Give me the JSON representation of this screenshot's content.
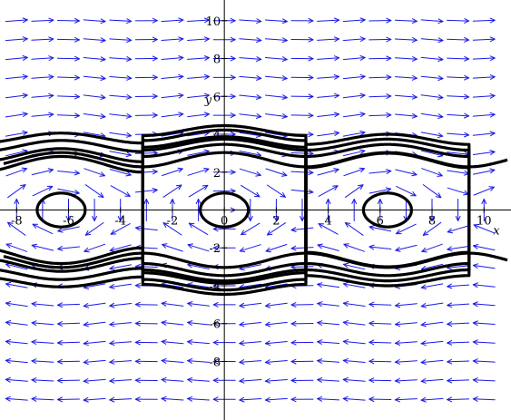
{
  "chart_data": {
    "type": "phase-portrait",
    "xlabel": "x",
    "ylabel": "y",
    "xlim": [
      -8.5,
      10.9
    ],
    "ylim": [
      -10.9,
      10.9
    ],
    "x_ticks": [
      -8,
      -6,
      -4,
      -2,
      0,
      2,
      4,
      6,
      8,
      10
    ],
    "y_ticks": [
      -8,
      -6,
      -4,
      -2,
      0,
      2,
      4,
      6,
      8,
      10
    ],
    "x_tick_labels": [
      "-8",
      "-6",
      "-4",
      "-2",
      "0",
      "2",
      "4",
      "6",
      "8",
      "10"
    ],
    "y_tick_labels": [
      "-8",
      "-6",
      "-4",
      "-2",
      "",
      "2",
      "4",
      "6",
      "8",
      "10"
    ],
    "field_equations": {
      "dx_dt": "y",
      "dy_dt": "-sin(x)"
    },
    "field_grid_step": [
      1,
      1
    ],
    "field_color": "#1a1ae6",
    "trajectory_color": "#000000",
    "centers_x": [
      -6.2832,
      0,
      6.2832
    ],
    "trajectories": [
      {
        "kind": "closed",
        "center_x": -6.2832,
        "energy": 0.8,
        "y_scale": 1.0
      },
      {
        "kind": "closed",
        "center_x": -6.2832,
        "energy": 8.0,
        "y_scale": 1.0
      },
      {
        "kind": "closed",
        "center_x": -6.2832,
        "energy": 10.5,
        "y_scale": 1.0
      },
      {
        "kind": "closed",
        "center_x": -6.2832,
        "energy": 13.5,
        "y_scale": 1.0
      },
      {
        "kind": "closed",
        "center_x": -6.2832,
        "energy": 16.5,
        "y_scale": 1.0
      },
      {
        "kind": "closed",
        "center_x": 0,
        "energy": 0.8,
        "y_scale": 1.0
      },
      {
        "kind": "closed",
        "center_x": 0,
        "energy": 12.0,
        "y_scale": 1.0
      },
      {
        "kind": "closed",
        "center_x": 0,
        "energy": 14.0,
        "y_scale": 1.0
      },
      {
        "kind": "closed",
        "center_x": 0,
        "energy": 15.0,
        "y_scale": 1.0
      },
      {
        "kind": "closed",
        "center_x": 0,
        "energy": 16.2,
        "y_scale": 1.05
      },
      {
        "kind": "closed",
        "center_x": 0,
        "energy": 18.0,
        "y_scale": 1.05
      },
      {
        "kind": "closed",
        "center_x": 6.2832,
        "energy": 0.8,
        "y_scale": 1.0
      },
      {
        "kind": "closed",
        "center_x": 6.2832,
        "energy": 9.0,
        "y_scale": 1.0
      },
      {
        "kind": "closed",
        "center_x": 6.2832,
        "energy": 12.0,
        "y_scale": 1.0
      },
      {
        "kind": "closed",
        "center_x": 6.2832,
        "energy": 14.0,
        "y_scale": 1.0
      },
      {
        "kind": "closed",
        "center_x": 6.2832,
        "energy": 16.0,
        "y_scale": 1.0
      },
      {
        "kind": "open",
        "branch": "upper",
        "energy": 4.6,
        "x_range": [
          -8.5,
          10.9
        ]
      },
      {
        "kind": "open",
        "branch": "lower",
        "energy": 4.6,
        "x_range": [
          -8.5,
          10.9
        ]
      }
    ]
  }
}
